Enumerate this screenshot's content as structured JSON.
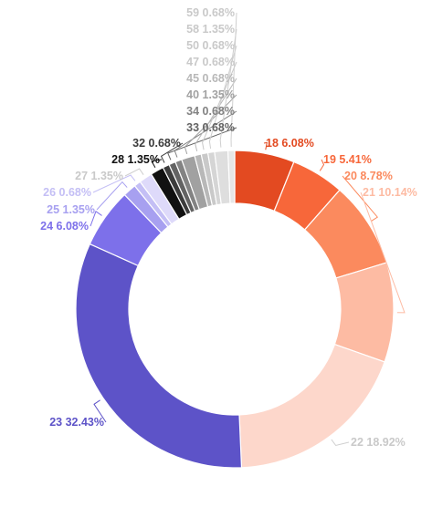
{
  "chart_data": {
    "type": "pie",
    "variant": "donut",
    "legend": "none",
    "slices": [
      {
        "label": "18",
        "percent": "6.08%",
        "value": 6.08,
        "color": "#e34a21"
      },
      {
        "label": "19",
        "percent": "5.41%",
        "value": 5.41,
        "color": "#f7673a"
      },
      {
        "label": "20",
        "percent": "8.78%",
        "value": 8.78,
        "color": "#fb8a5e"
      },
      {
        "label": "21",
        "percent": "10.14%",
        "value": 10.14,
        "color": "#fdbba3"
      },
      {
        "label": "22",
        "percent": "18.92%",
        "value": 18.92,
        "color": "#fdd7cb"
      },
      {
        "label": "23",
        "percent": "32.43%",
        "value": 32.43,
        "color": "#5d53c8"
      },
      {
        "label": "24",
        "percent": "6.08%",
        "value": 6.08,
        "color": "#7d70ea"
      },
      {
        "label": "25",
        "percent": "1.35%",
        "value": 1.35,
        "color": "#a7a0f0"
      },
      {
        "label": "26",
        "percent": "0.68%",
        "value": 0.68,
        "color": "#c4bff5"
      },
      {
        "label": "27",
        "percent": "1.35%",
        "value": 1.35,
        "color": "#dedafa"
      },
      {
        "label": "28",
        "percent": "1.35%",
        "value": 1.35,
        "color": "#111111"
      },
      {
        "label": "32",
        "percent": "0.68%",
        "value": 0.68,
        "color": "#3c3c3c"
      },
      {
        "label": "33",
        "percent": "0.68%",
        "value": 0.68,
        "color": "#636363"
      },
      {
        "label": "34",
        "percent": "0.68%",
        "value": 0.68,
        "color": "#838383"
      },
      {
        "label": "40",
        "percent": "1.35%",
        "value": 1.35,
        "color": "#a1a1a1"
      },
      {
        "label": "45",
        "percent": "0.68%",
        "value": 0.68,
        "color": "#b8b8b8"
      },
      {
        "label": "47",
        "percent": "0.68%",
        "value": 0.68,
        "color": "#c9c9c9"
      },
      {
        "label": "50",
        "percent": "0.68%",
        "value": 0.68,
        "color": "#d5d5d5"
      },
      {
        "label": "58",
        "percent": "1.35%",
        "value": 1.35,
        "color": "#dedede"
      },
      {
        "label": "59",
        "percent": "0.68%",
        "value": 0.68,
        "color": "#e6e6e6"
      }
    ]
  }
}
